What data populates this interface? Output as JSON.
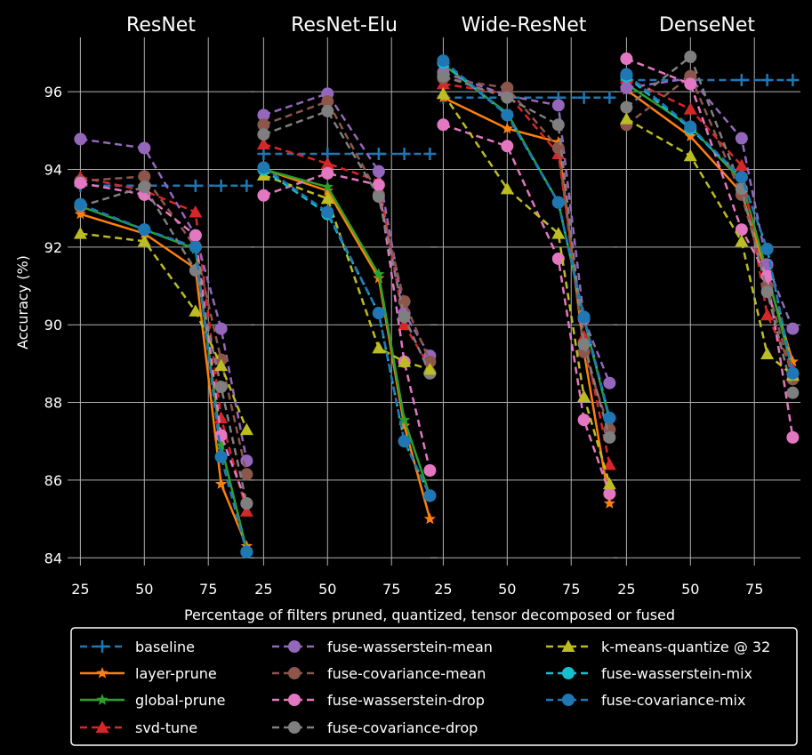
{
  "chart_data": {
    "type": "line",
    "xlabel": "Percentage of filters pruned, quantized, tensor decomposed or fused",
    "ylabel": "Accuracy (%)",
    "x": [
      25,
      50,
      70,
      80,
      90
    ],
    "xticks": [
      "25",
      "50",
      "75"
    ],
    "yticks": [
      "84",
      "86",
      "88",
      "90",
      "92",
      "94",
      "96"
    ],
    "ylim": [
      83.8,
      97.4
    ],
    "xlim": [
      20,
      93
    ],
    "grid": true,
    "legend_position": "bottom",
    "series_styles": [
      {
        "name": "baseline",
        "color": "#1f77b4",
        "marker": "plus",
        "dashed": true
      },
      {
        "name": "layer-prune",
        "color": "#ff7f0e",
        "marker": "star",
        "dashed": false
      },
      {
        "name": "global-prune",
        "color": "#2ca02c",
        "marker": "star",
        "dashed": false
      },
      {
        "name": "svd-tune",
        "color": "#d62728",
        "marker": "triangle",
        "dashed": true
      },
      {
        "name": "fuse-wasserstein-mean",
        "color": "#9467bd",
        "marker": "circle",
        "dashed": true
      },
      {
        "name": "fuse-covariance-mean",
        "color": "#8c564b",
        "marker": "circle",
        "dashed": true
      },
      {
        "name": "fuse-wasserstein-drop",
        "color": "#e377c2",
        "marker": "circle",
        "dashed": true
      },
      {
        "name": "fuse-covariance-drop",
        "color": "#7f7f7f",
        "marker": "circle",
        "dashed": true
      },
      {
        "name": "k-means-quantize @ 32",
        "color": "#bcbd22",
        "marker": "triangle",
        "dashed": true
      },
      {
        "name": "fuse-wasserstein-mix",
        "color": "#17becf",
        "marker": "circle",
        "dashed": true
      },
      {
        "name": "fuse-covariance-mix",
        "color": "#1f77b4",
        "marker": "circle",
        "dashed": true
      }
    ],
    "panels": [
      {
        "title": "ResNet",
        "values": {
          "baseline": [
            93.58,
            93.58,
            93.58,
            93.58,
            93.58
          ],
          "layer-prune": [
            92.85,
            92.35,
            91.45,
            85.9,
            84.3
          ],
          "global-prune": [
            93.05,
            92.45,
            91.95,
            86.9,
            84.2
          ],
          "svd-tune": [
            93.8,
            93.45,
            92.9,
            87.6,
            85.2
          ],
          "fuse-wasserstein-mean": [
            94.78,
            94.55,
            92.3,
            89.9,
            86.5
          ],
          "fuse-covariance-mean": [
            93.7,
            93.82,
            92.0,
            89.1,
            86.15
          ],
          "fuse-wasserstein-drop": [
            93.65,
            93.35,
            92.3,
            87.15,
            85.4
          ],
          "fuse-covariance-drop": [
            93.05,
            93.55,
            91.4,
            88.4,
            85.4
          ],
          "k-means-quantize @ 32": [
            92.35,
            92.15,
            90.35,
            88.95,
            87.3
          ],
          "fuse-wasserstein-mix": [
            93.1,
            92.45,
            92.0,
            86.6,
            84.15
          ],
          "fuse-covariance-mix": [
            93.1,
            92.45,
            92.0,
            86.6,
            84.15
          ]
        }
      },
      {
        "title": "ResNet-Elu",
        "values": {
          "baseline": [
            94.4,
            94.4,
            94.4,
            94.4,
            94.4
          ],
          "layer-prune": [
            94.0,
            93.45,
            91.2,
            87.4,
            85.0
          ],
          "global-prune": [
            94.0,
            93.55,
            91.3,
            87.55,
            85.6
          ],
          "svd-tune": [
            94.65,
            94.15,
            93.7,
            90.0,
            88.9
          ],
          "fuse-wasserstein-mean": [
            95.4,
            95.95,
            93.95,
            90.3,
            89.2
          ],
          "fuse-covariance-mean": [
            95.15,
            95.75,
            93.35,
            90.6,
            89.05
          ],
          "fuse-wasserstein-drop": [
            93.33,
            93.9,
            93.6,
            89.05,
            86.25
          ],
          "fuse-covariance-drop": [
            94.9,
            95.5,
            93.3,
            90.2,
            88.75
          ],
          "k-means-quantize @ 32": [
            93.85,
            93.25,
            89.4,
            89.05,
            88.85
          ],
          "fuse-wasserstein-mix": [
            94.0,
            92.85,
            90.3,
            87.0,
            85.6
          ],
          "fuse-covariance-mix": [
            94.05,
            92.9,
            90.3,
            87.0,
            85.6
          ]
        }
      },
      {
        "title": "Wide-ResNet",
        "values": {
          "baseline": [
            95.85,
            95.85,
            95.85,
            95.85,
            95.85
          ],
          "layer-prune": [
            95.85,
            95.05,
            94.7,
            89.3,
            85.4
          ],
          "global-prune": [
            96.7,
            95.45,
            93.15,
            90.15,
            87.55
          ],
          "svd-tune": [
            96.2,
            95.95,
            94.4,
            89.7,
            86.4
          ],
          "fuse-wasserstein-mean": [
            96.5,
            95.9,
            95.65,
            90.15,
            88.5
          ],
          "fuse-covariance-mean": [
            96.35,
            96.1,
            94.55,
            89.3,
            87.3
          ],
          "fuse-wasserstein-drop": [
            95.15,
            94.6,
            91.7,
            87.55,
            85.65
          ],
          "fuse-covariance-drop": [
            96.4,
            95.85,
            95.15,
            89.5,
            87.1
          ],
          "k-means-quantize @ 32": [
            95.95,
            93.5,
            92.35,
            88.15,
            85.9
          ],
          "fuse-wasserstein-mix": [
            96.75,
            95.4,
            93.15,
            90.2,
            87.6
          ],
          "fuse-covariance-mix": [
            96.8,
            95.4,
            93.15,
            90.2,
            87.6
          ]
        }
      },
      {
        "title": "DenseNet",
        "values": {
          "baseline": [
            96.3,
            96.3,
            96.3,
            96.3,
            96.3
          ],
          "layer-prune": [
            96.05,
            94.85,
            93.4,
            91.25,
            89.05
          ],
          "global-prune": [
            96.2,
            95.1,
            93.7,
            91.35,
            88.8
          ],
          "svd-tune": [
            96.35,
            95.55,
            94.1,
            90.25,
            88.85
          ],
          "fuse-wasserstein-mean": [
            96.1,
            96.35,
            94.8,
            91.55,
            89.9
          ],
          "fuse-covariance-mean": [
            95.15,
            96.4,
            93.35,
            91.0,
            88.6
          ],
          "fuse-wasserstein-drop": [
            96.85,
            96.2,
            92.45,
            91.25,
            87.1
          ],
          "fuse-covariance-drop": [
            95.6,
            96.9,
            93.5,
            90.85,
            88.25
          ],
          "k-means-quantize @ 32": [
            95.3,
            94.35,
            92.15,
            89.25,
            88.7
          ],
          "fuse-wasserstein-mix": [
            96.4,
            95.05,
            93.8,
            91.95,
            88.75
          ],
          "fuse-covariance-mix": [
            96.45,
            95.1,
            93.8,
            91.95,
            88.75
          ]
        }
      }
    ]
  }
}
